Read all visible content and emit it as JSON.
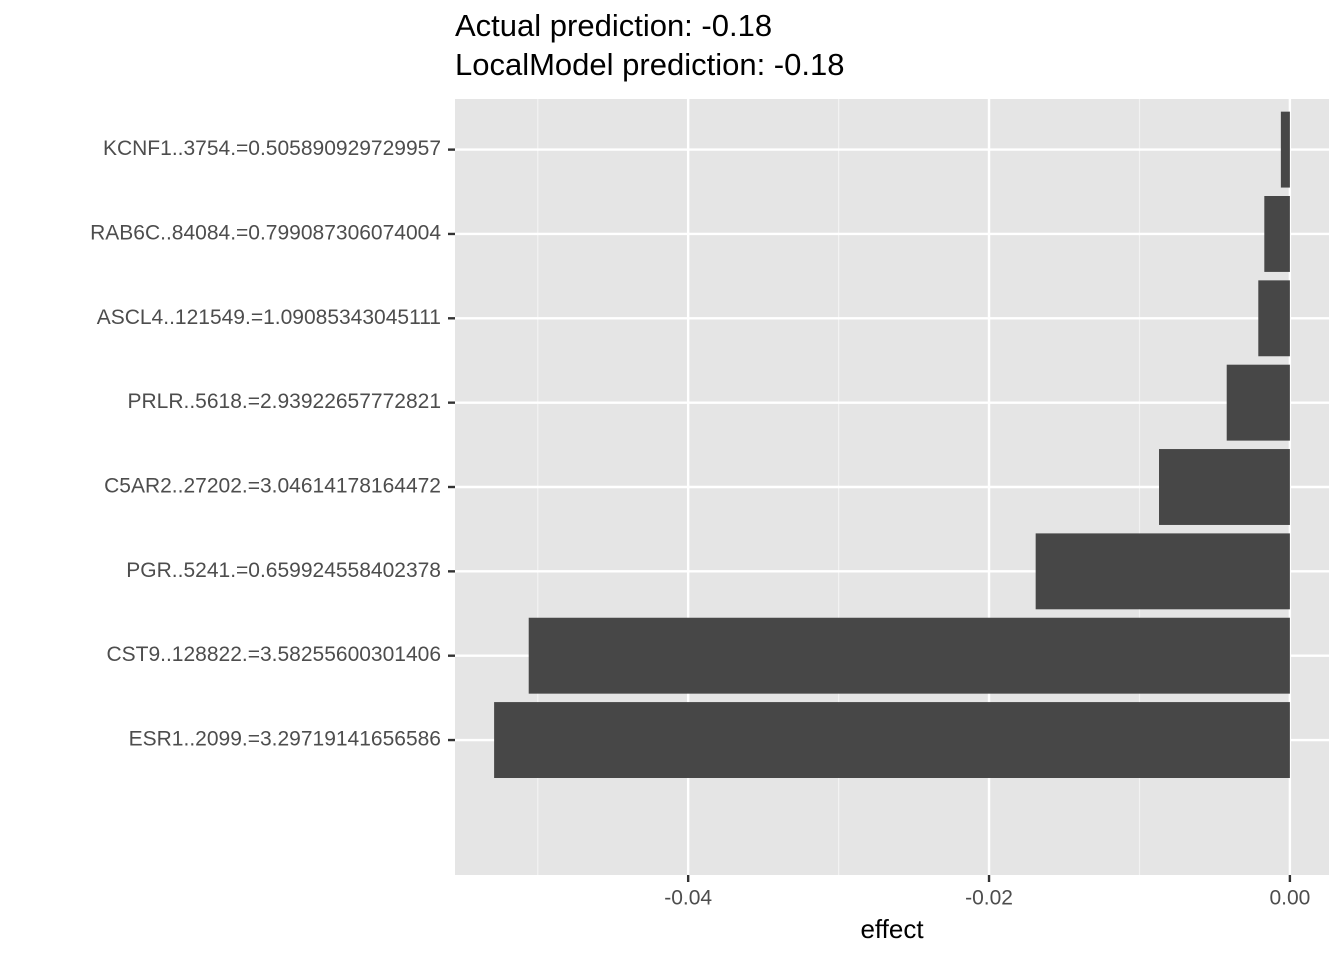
{
  "chart_data": {
    "type": "barh",
    "title": [
      "Actual prediction: -0.18",
      "LocalModel prediction: -0.18"
    ],
    "x_label": "effect",
    "categories": [
      "KCNF1..3754.=0.505890929729957",
      "RAB6C..84084.=0.799087306074004",
      "ASCL4..121549.=1.09085343045111",
      "PRLR..5618.=2.93922657772821",
      "C5AR2..27202.=3.04614178164472",
      "PGR..5241.=0.659924558402378",
      "CST9..128822.=3.58255600301406",
      "ESR1..2099.=3.29719141656586"
    ],
    "values": [
      -0.0006,
      -0.0017,
      -0.0021,
      -0.0042,
      -0.0087,
      -0.0169,
      -0.0506,
      -0.0529
    ],
    "color": "#474747",
    "xlim": [
      -0.0555,
      0.0026
    ],
    "xticks": [
      -0.04,
      -0.02,
      {
        "value": 0,
        "label": "0.00"
      }
    ],
    "x_minor_grid": [
      -0.05,
      -0.03,
      -0.01
    ],
    "grid": true
  }
}
